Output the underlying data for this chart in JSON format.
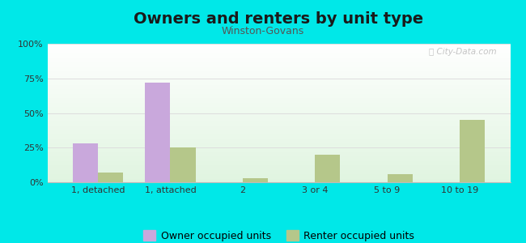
{
  "title": "Owners and renters by unit type",
  "subtitle": "Winston-Govans",
  "categories": [
    "1, detached",
    "1, attached",
    "2",
    "3 or 4",
    "5 to 9",
    "10 to 19"
  ],
  "owner_values": [
    28,
    72,
    0,
    0,
    0,
    0
  ],
  "renter_values": [
    7,
    25,
    3,
    20,
    6,
    45
  ],
  "owner_color": "#c9a8dc",
  "renter_color": "#b5c78a",
  "background_color": "#00e8e8",
  "ylim": [
    0,
    100
  ],
  "yticks": [
    0,
    25,
    50,
    75,
    100
  ],
  "ytick_labels": [
    "0%",
    "25%",
    "50%",
    "75%",
    "100%"
  ],
  "legend_owner": "Owner occupied units",
  "legend_renter": "Renter occupied units",
  "bar_width": 0.35,
  "title_fontsize": 14,
  "subtitle_fontsize": 9,
  "tick_fontsize": 8,
  "legend_fontsize": 9,
  "title_color": "#1a1a1a",
  "subtitle_color": "#555555",
  "grid_color": "#dddddd",
  "watermark_color": "#bbbbbb"
}
